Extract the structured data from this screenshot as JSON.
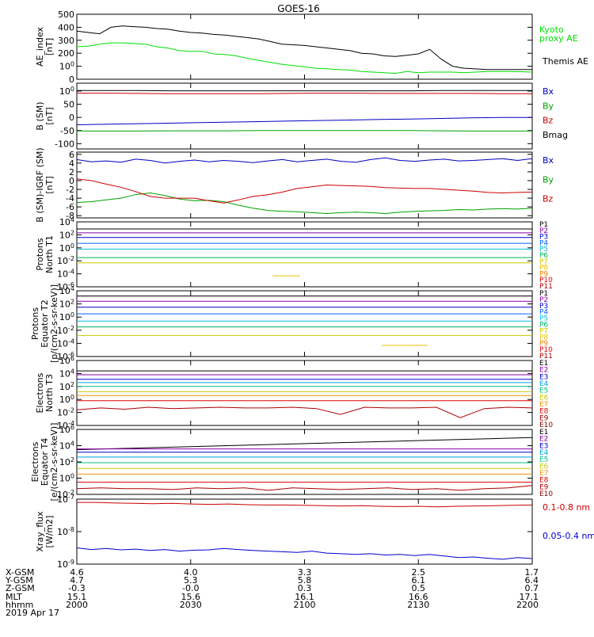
{
  "title": "GOES-16",
  "chart_data": [
    {
      "type": "line",
      "ylabel": "AE_index\n[nT]",
      "ylim": [
        0,
        500
      ],
      "yticks": [
        "0",
        "100",
        "200",
        "300",
        "400",
        "500"
      ],
      "legend": [
        "Kyoto proxy AE",
        "Themis AE"
      ],
      "series": [
        {
          "name": "Kyoto proxy AE",
          "color": "#00e000",
          "values": [
            250,
            255,
            270,
            280,
            280,
            275,
            270,
            250,
            240,
            220,
            215,
            215,
            195,
            190,
            180,
            160,
            145,
            130,
            115,
            105,
            95,
            85,
            80,
            75,
            70,
            60,
            55,
            50,
            45,
            60,
            50,
            55,
            55,
            55,
            50,
            55,
            60,
            60,
            60,
            58,
            55
          ]
        },
        {
          "name": "Themis AE",
          "color": "#000000",
          "values": [
            370,
            360,
            350,
            400,
            410,
            405,
            400,
            390,
            385,
            370,
            360,
            355,
            345,
            340,
            330,
            320,
            310,
            290,
            270,
            265,
            260,
            250,
            240,
            230,
            220,
            200,
            195,
            180,
            175,
            185,
            195,
            230,
            155,
            100,
            85,
            80,
            75,
            75,
            75,
            75,
            75
          ]
        }
      ]
    },
    {
      "type": "line",
      "ylabel": "B (SM)\n[nT]",
      "ylim": [
        -120,
        130
      ],
      "yticks": [
        "-100",
        "-50",
        "0",
        "50",
        "100"
      ],
      "legend": [
        "Bx",
        "By",
        "Bz",
        "Bmag"
      ],
      "series": [
        {
          "name": "Bx",
          "color": "#0000c0",
          "values": [
            -28,
            -26,
            -24,
            -22,
            -20,
            -18,
            -16,
            -14,
            -12,
            -10,
            -8,
            -6,
            -4,
            -2,
            0,
            0
          ]
        },
        {
          "name": "By",
          "color": "#00a000",
          "values": [
            -52,
            -52,
            -52,
            -51,
            -51,
            -51,
            -50,
            -50,
            -50,
            -50,
            -50,
            -50,
            -51,
            -52,
            -52,
            -52
          ]
        },
        {
          "name": "Bz",
          "color": "#cc0000",
          "values": [
            92,
            92,
            91,
            90,
            90,
            90,
            90,
            91,
            92,
            92,
            91,
            91,
            91,
            91,
            90,
            90
          ]
        },
        {
          "name": "Bmag",
          "color": "#000000",
          "values": [
            102,
            102,
            102,
            101,
            101,
            101,
            101,
            101,
            101,
            101,
            101,
            101,
            102,
            102,
            102,
            102
          ]
        }
      ]
    },
    {
      "type": "line",
      "ylabel": "B (SM)-IGRF (SM)\n[nT]",
      "ylim": [
        -8.5,
        6.5
      ],
      "yticks": [
        "-8",
        "-6",
        "-4",
        "-2",
        "0",
        "2",
        "4",
        "6"
      ],
      "legend": [
        "Bx",
        "By",
        "Bz"
      ],
      "series": [
        {
          "name": "Bx",
          "color": "#0000c0",
          "values": [
            4.8,
            4.3,
            4.5,
            4.2,
            4.9,
            4.6,
            4.0,
            4.4,
            4.7,
            4.3,
            4.6,
            4.4,
            4.1,
            4.5,
            4.8,
            4.3,
            4.6,
            4.9,
            4.4,
            4.2,
            4.8,
            5.2,
            4.6,
            4.4,
            4.7,
            4.9,
            4.5,
            4.6,
            4.8,
            5.0,
            4.6,
            5.0
          ]
        },
        {
          "name": "By",
          "color": "#00a000",
          "values": [
            -5.0,
            -4.8,
            -4.4,
            -4.0,
            -3.2,
            -2.8,
            -3.4,
            -4.2,
            -4.6,
            -4.5,
            -4.8,
            -5.6,
            -6.3,
            -6.8,
            -7.0,
            -7.1,
            -7.3,
            -7.5,
            -7.3,
            -7.2,
            -7.3,
            -7.5,
            -7.2,
            -7.0,
            -6.9,
            -6.8,
            -6.6,
            -6.7,
            -6.5,
            -6.4,
            -6.5,
            -6.3
          ]
        },
        {
          "name": "Bz",
          "color": "#cc0000",
          "values": [
            0.4,
            0.0,
            -0.8,
            -1.5,
            -2.5,
            -3.6,
            -4.0,
            -4.0,
            -4.0,
            -4.6,
            -5.1,
            -4.4,
            -3.6,
            -3.2,
            -2.6,
            -1.8,
            -1.4,
            -1.0,
            -1.1,
            -1.2,
            -1.3,
            -1.6,
            -1.7,
            -1.8,
            -1.8,
            -2.0,
            -2.2,
            -2.4,
            -2.7,
            -2.8,
            -2.7,
            -2.6
          ]
        }
      ]
    },
    {
      "type": "line",
      "ylabel": "Protons\nNorth T1",
      "yscale": "log",
      "ylim_exp": [
        -6,
        4
      ],
      "yticks": [
        "10-6",
        "10-4",
        "10-2",
        "100",
        "102",
        "104"
      ],
      "legend": [
        "P1",
        "P2",
        "P3",
        "P4",
        "P5",
        "P6",
        "P7",
        "P8",
        "P9",
        "P10",
        "P11"
      ],
      "series": [
        {
          "name": "P1",
          "color": "#000000",
          "log_level": 2.9
        },
        {
          "name": "P2",
          "color": "#8800aa",
          "log_level": 2.3
        },
        {
          "name": "P3",
          "color": "#0000cc",
          "log_level": 1.6
        },
        {
          "name": "P4",
          "color": "#0060ff",
          "log_level": 0.7
        },
        {
          "name": "P5",
          "color": "#00c0e0",
          "log_level": -0.2
        },
        {
          "name": "P6",
          "color": "#00b060",
          "log_level": -1.5
        },
        {
          "name": "P7",
          "color": "#c8c800",
          "log_level": -2.3
        },
        {
          "name": "P8",
          "color": "#e8c000",
          "log_level": -4.3,
          "segment": [
            0.43,
            0.49
          ]
        }
      ],
      "legend_colors": [
        "#000000",
        "#8800aa",
        "#0000cc",
        "#0060ff",
        "#00c0e0",
        "#00b060",
        "#c8c800",
        "#e8c000",
        "#f08000",
        "#dd0000",
        "#aa0000"
      ]
    },
    {
      "type": "line",
      "ylabel": "Protons\nEquator T2\n[p/(cm2-s-sr-keV)]",
      "yscale": "log",
      "ylim_exp": [
        -6,
        4
      ],
      "yticks": [
        "10-6",
        "10-4",
        "10-2",
        "100",
        "102",
        "104"
      ],
      "legend": [
        "P1",
        "P2",
        "P3",
        "P4",
        "P5",
        "P6",
        "P7",
        "P8",
        "P9",
        "P10",
        "P11"
      ],
      "series": [
        {
          "name": "P1",
          "color": "#000000",
          "log_level": 3.2
        },
        {
          "name": "P2",
          "color": "#8800aa",
          "log_level": 2.4
        },
        {
          "name": "P3",
          "color": "#0000cc",
          "log_level": 1.5
        },
        {
          "name": "P4",
          "color": "#0060ff",
          "log_level": 0.5
        },
        {
          "name": "P5",
          "color": "#00c0e0",
          "log_level": -0.6
        },
        {
          "name": "P6",
          "color": "#00b060",
          "log_level": -1.5
        },
        {
          "name": "P7",
          "color": "#c8c800",
          "log_level": -2.8
        },
        {
          "name": "P8",
          "color": "#e8c000",
          "log_level": -4.3,
          "segment": [
            0.67,
            0.77
          ]
        }
      ],
      "legend_colors": [
        "#000000",
        "#8800aa",
        "#0000cc",
        "#0060ff",
        "#00c0e0",
        "#00b060",
        "#c8c800",
        "#e8c000",
        "#f08000",
        "#dd0000",
        "#aa0000"
      ]
    },
    {
      "type": "line",
      "ylabel": "Electrons\nNorth T3",
      "yscale": "log",
      "ylim_exp": [
        -4,
        6
      ],
      "yticks": [
        "10-4",
        "10-2",
        "100",
        "102",
        "104",
        "106"
      ],
      "legend": [
        "E1",
        "E2",
        "E3",
        "E4",
        "E5",
        "E6",
        "E7",
        "E8",
        "E9",
        "E10"
      ],
      "series": [
        {
          "name": "E1",
          "color": "#000000",
          "log_level": 4.4
        },
        {
          "name": "E2",
          "color": "#8800aa",
          "log_level": 3.8
        },
        {
          "name": "E3",
          "color": "#0000cc",
          "log_level": 3.1
        },
        {
          "name": "E4",
          "color": "#00a0e0",
          "log_level": 2.6
        },
        {
          "name": "E5",
          "color": "#00c080",
          "log_level": 2.0
        },
        {
          "name": "E6",
          "color": "#c8c800",
          "log_level": 1.2
        },
        {
          "name": "E7",
          "color": "#f09000",
          "log_level": 0.6
        },
        {
          "name": "E8",
          "color": "#dd0000",
          "log_level": -0.2
        },
        {
          "name": "E9",
          "color": "#aa0000",
          "values": [
            -1.6,
            -1.3,
            -1.5,
            -1.2,
            -1.4,
            -1.3,
            -1.2,
            -1.3,
            -1.3,
            -1.2,
            -1.4,
            -2.3,
            -1.2,
            -1.3,
            -1.3,
            -1.2,
            -2.8,
            -1.4,
            -1.2,
            -1.3
          ]
        }
      ],
      "legend_colors": [
        "#000000",
        "#8800aa",
        "#0000cc",
        "#00a0e0",
        "#00c080",
        "#c8c800",
        "#f09000",
        "#dd0000",
        "#aa0000",
        "#880000"
      ]
    },
    {
      "type": "line",
      "ylabel": "Electrons\nEquator T4\n[e/(cm2-s-sr-keV)]",
      "yscale": "log",
      "ylim_exp": [
        -2,
        6
      ],
      "yticks": [
        "10-2",
        "100",
        "102",
        "104",
        "106"
      ],
      "legend": [
        "E1",
        "E2",
        "E3",
        "E4",
        "E5",
        "E6",
        "E7",
        "E8",
        "E9",
        "E10"
      ],
      "series": [
        {
          "name": "E1",
          "color": "#000000",
          "start": 3.5,
          "end": 5.0
        },
        {
          "name": "E2",
          "color": "#8800aa",
          "log_level": 3.6
        },
        {
          "name": "E3",
          "color": "#0000cc",
          "log_level": 3.2
        },
        {
          "name": "E4",
          "color": "#00a0e0",
          "log_level": 2.6
        },
        {
          "name": "E5",
          "color": "#00c080",
          "log_level": 1.9
        },
        {
          "name": "E6",
          "color": "#c8c800",
          "log_level": 1.2
        },
        {
          "name": "E7",
          "color": "#f09000",
          "log_level": 0.5
        },
        {
          "name": "E8",
          "color": "#dd0000",
          "log_level": -0.5
        },
        {
          "name": "E9",
          "color": "#aa0000",
          "values": [
            -1.3,
            -1.2,
            -1.3,
            -1.3,
            -1.4,
            -1.2,
            -1.3,
            -1.2,
            -1.5,
            -1.2,
            -1.3,
            -1.4,
            -1.3,
            -1.2,
            -1.4,
            -1.3,
            -1.5,
            -1.3,
            -1.2,
            -0.9
          ]
        }
      ],
      "legend_colors": [
        "#000000",
        "#8800aa",
        "#0000cc",
        "#00a0e0",
        "#00c080",
        "#c8c800",
        "#f09000",
        "#dd0000",
        "#aa0000",
        "#880000"
      ]
    },
    {
      "type": "line",
      "ylabel": "Xray_flux\n[W/m2]",
      "yscale": "log",
      "ylim_exp": [
        -9,
        -7
      ],
      "yticks": [
        "10-9",
        "10-8",
        "10-7"
      ],
      "legend": [
        "0.1-0.8 nm",
        "0.05-0.4 nm"
      ],
      "series": [
        {
          "name": "0.1-0.8 nm",
          "color": "#cc0000",
          "values": [
            -7.1,
            -7.1,
            -7.12,
            -7.13,
            -7.14,
            -7.13,
            -7.15,
            -7.16,
            -7.15,
            -7.17,
            -7.18,
            -7.18,
            -7.19,
            -7.2,
            -7.21,
            -7.2,
            -7.22,
            -7.23,
            -7.22,
            -7.24,
            -7.22,
            -7.21,
            -7.2,
            -7.19,
            -7.18
          ]
        },
        {
          "name": "0.05-0.4 nm",
          "color": "#0000cc",
          "values": [
            -8.5,
            -8.55,
            -8.52,
            -8.56,
            -8.54,
            -8.58,
            -8.55,
            -8.6,
            -8.57,
            -8.56,
            -8.52,
            -8.55,
            -8.58,
            -8.6,
            -8.62,
            -8.64,
            -8.6,
            -8.66,
            -8.68,
            -8.7,
            -8.68,
            -8.72,
            -8.7,
            -8.74,
            -8.7,
            -8.75,
            -8.8,
            -8.78,
            -8.82,
            -8.85,
            -8.8,
            -8.83
          ]
        }
      ]
    }
  ],
  "ephemeris": {
    "labels": [
      "X-GSM",
      "Y-GSM",
      "Z-GSM",
      "MLT",
      "hhmm",
      "2019 Apr 17"
    ],
    "columns": [
      [
        "4.6",
        "4.7",
        "-0.3",
        "15.1",
        "2000"
      ],
      [
        "4.0",
        "5.3",
        "-0.0",
        "15.6",
        "2030"
      ],
      [
        "3.3",
        "5.8",
        "0.3",
        "16.1",
        "2100"
      ],
      [
        "2.5",
        "6.1",
        "0.5",
        "16.6",
        "2130"
      ],
      [
        "1.7",
        "6.4",
        "0.7",
        "17.1",
        "2200"
      ]
    ]
  }
}
